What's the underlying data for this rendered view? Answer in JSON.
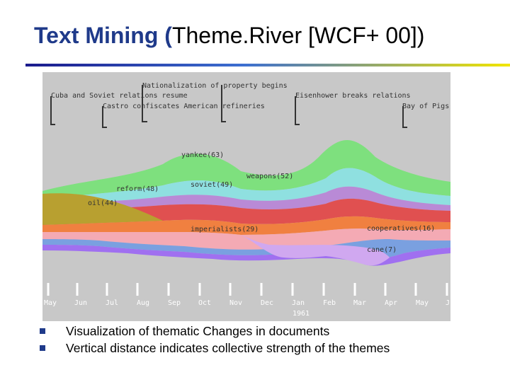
{
  "slide": {
    "title_bold": "Text Mining (",
    "title_rest": "Theme.River [WCF+ 00])"
  },
  "figure": {
    "events": [
      "Nationalization of property begins",
      "Cuba and Soviet relations resume",
      "Eisenhower breaks relations",
      "Castro confiscates American refineries",
      "Bay of Pigs"
    ],
    "themes": [
      "yankee(63)",
      "weapons(52)",
      "reform(48)",
      "soviet(49)",
      "oil(44)",
      "imperialists(29)",
      "cooperatives(16)",
      "cane(7)"
    ],
    "months": [
      "May",
      "Jun",
      "Jul",
      "Aug",
      "Sep",
      "Oct",
      "Nov",
      "Dec",
      "Jan",
      "Feb",
      "Mar",
      "Apr",
      "May",
      "J"
    ],
    "year": "1961"
  },
  "bullets": [
    "Visualization of thematic Changes in documents",
    "Vertical distance indicates collective strength of the themes"
  ],
  "colors": {
    "title_accent": "#1f3a8a",
    "figure_bg": "#c8c8c8",
    "bullet_marker": "#1f3a8a"
  }
}
